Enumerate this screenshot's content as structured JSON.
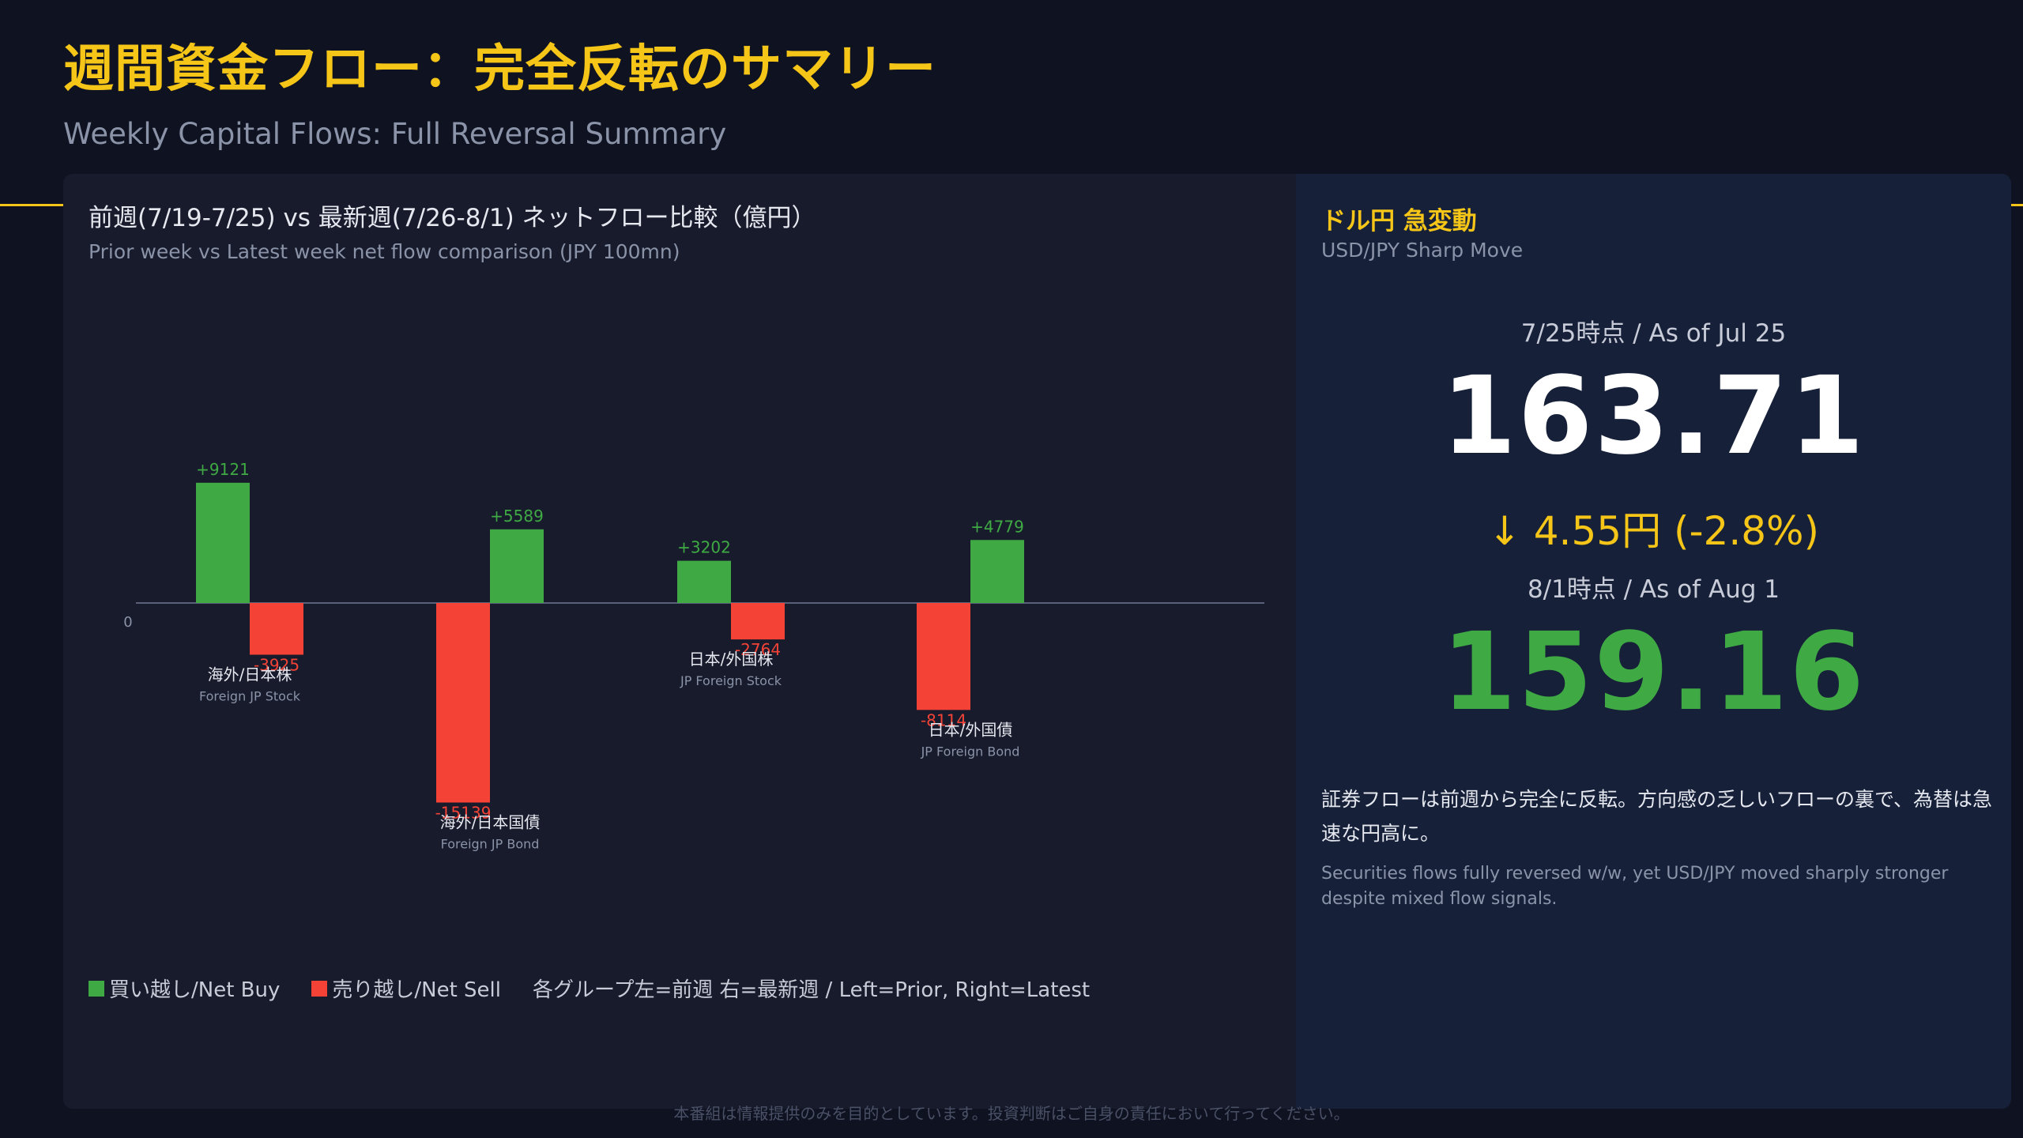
{
  "header": {
    "title_ja": "週間資金フロー：完全反転のサマリー",
    "title_en": "Weekly Capital Flows: Full Reversal Summary"
  },
  "left_panel": {
    "title": "前週(7/19-7/25) vs 最新週(7/26-8/1) ネットフロー比較（億円）",
    "subtitle": "Prior week vs Latest week net flow comparison (JPY 100mn)",
    "legend": {
      "buy": "買い越し/Net Buy",
      "sell": "売り越し/Net Sell",
      "note": "各グループ左=前週 右=最新週 / Left=Prior, Right=Latest"
    }
  },
  "right_panel": {
    "title": "ドル円 急変動",
    "subtitle": "USD/JPY Sharp Move",
    "asof_prior": "7/25時点 / As of Jul 25",
    "rate_prior": "163.71",
    "change": "↓ 4.55円 (-2.8%)",
    "asof_latest": "8/1時点 / As of Aug 1",
    "rate_latest": "159.16",
    "desc_ja": "証券フローは前週から完全に反転。方向感の乏しいフローの裏で、為替は急速な円高に。",
    "desc_en": "Securities flows fully reversed w/w, yet USD/JPY moved sharply stronger despite mixed flow signals."
  },
  "footer": "本番組は情報提供のみを目的としています。投資判断はご自身の責任において行ってください。",
  "colors": {
    "accent": "#f5c518",
    "buy": "#3fa944",
    "sell": "#f44336",
    "axis": "#5a6078"
  },
  "chart_data": {
    "type": "bar",
    "categories": [
      {
        "ja": "海外/日本株",
        "en": "Foreign JP Stock"
      },
      {
        "ja": "海外/日本国債",
        "en": "Foreign JP Bond"
      },
      {
        "ja": "日本/外国株",
        "en": "JP Foreign Stock"
      },
      {
        "ja": "日本/外国債",
        "en": "JP Foreign Bond"
      }
    ],
    "series": [
      {
        "values": [
          9121,
          -15139,
          3202,
          -8114
        ],
        "labels": [
          "+9121",
          "-15139",
          "+3202",
          "-8114"
        ]
      },
      {
        "values": [
          -3925,
          5589,
          -2764,
          4779
        ],
        "labels": [
          "-3925",
          "+5589",
          "-2764",
          "+4779"
        ]
      }
    ],
    "zero_label": "0",
    "ylim": [
      -15139,
      9121
    ]
  }
}
